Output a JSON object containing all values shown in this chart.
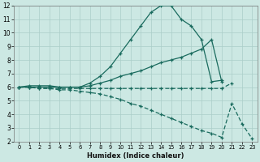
{
  "xlabel": "Humidex (Indice chaleur)",
  "background_color": "#cce8e3",
  "grid_color": "#aacec8",
  "line_color": "#1a6b5e",
  "xlim_min": -0.5,
  "xlim_max": 23.5,
  "ylim_min": 2,
  "ylim_max": 12,
  "xticks": [
    0,
    1,
    2,
    3,
    4,
    5,
    6,
    7,
    8,
    9,
    10,
    11,
    12,
    13,
    14,
    15,
    16,
    17,
    18,
    19,
    20,
    21,
    22,
    23
  ],
  "yticks": [
    2,
    3,
    4,
    5,
    6,
    7,
    8,
    9,
    10,
    11,
    12
  ],
  "curve_upper_x": [
    0,
    1,
    2,
    3,
    4,
    5,
    6,
    7,
    8,
    9,
    10,
    11,
    12,
    13,
    14,
    15,
    16,
    17,
    18,
    19,
    20
  ],
  "curve_upper_y": [
    6.0,
    6.1,
    6.1,
    6.1,
    6.0,
    6.0,
    6.0,
    6.3,
    6.8,
    7.5,
    8.5,
    9.5,
    10.5,
    11.5,
    12.0,
    12.0,
    11.0,
    10.5,
    9.5,
    6.4,
    6.5
  ],
  "curve_mid_x": [
    0,
    1,
    2,
    3,
    4,
    5,
    6,
    7,
    8,
    9,
    10,
    11,
    12,
    13,
    14,
    15,
    16,
    17,
    18,
    19,
    20
  ],
  "curve_mid_y": [
    6.0,
    6.0,
    6.0,
    6.0,
    6.0,
    6.0,
    6.0,
    6.1,
    6.3,
    6.5,
    6.8,
    7.0,
    7.2,
    7.5,
    7.8,
    8.0,
    8.2,
    8.5,
    8.8,
    9.5,
    6.4
  ],
  "curve_flat_x": [
    0,
    1,
    2,
    3,
    4,
    5,
    6,
    7,
    8,
    9,
    10,
    11,
    12,
    13,
    14,
    15,
    16,
    17,
    18,
    19,
    20,
    21
  ],
  "curve_flat_y": [
    6.0,
    6.0,
    5.9,
    5.9,
    5.9,
    5.9,
    5.9,
    5.9,
    5.9,
    5.9,
    5.9,
    5.9,
    5.9,
    5.9,
    5.9,
    5.9,
    5.9,
    5.9,
    5.9,
    5.9,
    5.9,
    6.3
  ],
  "curve_lower_x": [
    0,
    1,
    2,
    3,
    4,
    5,
    6,
    7,
    8,
    9,
    10,
    11,
    12,
    13,
    14,
    15,
    16,
    17,
    18,
    19,
    20,
    21,
    22,
    23
  ],
  "curve_lower_y": [
    6.0,
    6.0,
    5.9,
    5.9,
    5.8,
    5.8,
    5.7,
    5.6,
    5.5,
    5.3,
    5.1,
    4.8,
    4.6,
    4.3,
    4.0,
    3.7,
    3.4,
    3.1,
    2.8,
    2.6,
    2.3,
    4.8,
    3.3,
    2.2
  ]
}
